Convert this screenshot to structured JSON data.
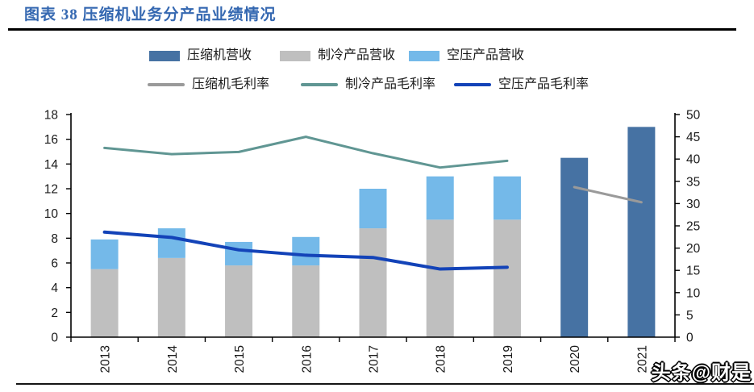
{
  "page": {
    "title": "图表 38 压缩机业务分产品业绩情况",
    "watermark": "头条@财是"
  },
  "colors": {
    "title": "#3568B1",
    "axis": "#000000",
    "tick_text": "#1A1A1A",
    "bar_compressor": "#4672A3",
    "bar_refrigeration": "#BFBFBF",
    "bar_air": "#74B9E9",
    "line_compressor": "#9A9A9A",
    "line_refrigeration": "#609693",
    "line_air": "#1343B8"
  },
  "legend": {
    "row1": [
      {
        "label": "压缩机营收",
        "type": "bar",
        "color_key": "bar_compressor"
      },
      {
        "label": "制冷产品营收",
        "type": "bar",
        "color_key": "bar_refrigeration"
      },
      {
        "label": "空压产品营收",
        "type": "bar",
        "color_key": "bar_air"
      }
    ],
    "row2": [
      {
        "label": "压缩机毛利率",
        "type": "line",
        "color_key": "line_compressor"
      },
      {
        "label": "制冷产品毛利率",
        "type": "line",
        "color_key": "line_refrigeration"
      },
      {
        "label": "空压产品毛利率",
        "type": "line",
        "color_key": "line_air"
      }
    ]
  },
  "chart_data": {
    "type": "combo-bar-line",
    "title": "图表 38 压缩机业务分产品业绩情况",
    "categories": [
      "2013",
      "2014",
      "2015",
      "2016",
      "2017",
      "2018",
      "2019",
      "2020",
      "2021"
    ],
    "bar_series": [
      {
        "name": "制冷产品营收",
        "axis": "left",
        "stack": "revenue",
        "color_key": "bar_refrigeration",
        "values": [
          5.5,
          6.4,
          5.8,
          5.8,
          8.8,
          9.5,
          9.5,
          null,
          null
        ]
      },
      {
        "name": "空压产品营收",
        "axis": "left",
        "stack": "revenue",
        "color_key": "bar_air",
        "values": [
          2.4,
          2.4,
          1.9,
          2.3,
          3.2,
          3.5,
          3.5,
          null,
          null
        ]
      },
      {
        "name": "压缩机营收",
        "axis": "left",
        "stack": "revenue",
        "color_key": "bar_compressor",
        "values": [
          null,
          null,
          null,
          null,
          null,
          null,
          null,
          14.5,
          17.0
        ]
      }
    ],
    "line_series": [
      {
        "name": "制冷产品毛利率",
        "axis": "right",
        "color_key": "line_refrigeration",
        "width": 3,
        "values": [
          42.5,
          41.1,
          41.6,
          45.0,
          41.3,
          38.1,
          39.6,
          null,
          null
        ]
      },
      {
        "name": "空压产品毛利率",
        "axis": "right",
        "color_key": "line_air",
        "width": 4,
        "values": [
          23.6,
          22.4,
          19.6,
          18.4,
          17.9,
          15.3,
          15.7,
          null,
          null
        ]
      },
      {
        "name": "压缩机毛利率",
        "axis": "right",
        "color_key": "line_compressor",
        "width": 3,
        "values": [
          null,
          null,
          null,
          null,
          null,
          null,
          null,
          33.7,
          30.3
        ]
      }
    ],
    "left_axis": {
      "min": 0,
      "max": 18,
      "step": 2,
      "ticks": [
        "0",
        "2",
        "4",
        "6",
        "8",
        "10",
        "12",
        "14",
        "16",
        "18"
      ]
    },
    "right_axis": {
      "min": 0,
      "max": 50,
      "step": 5,
      "ticks": [
        "0",
        "5",
        "10",
        "15",
        "20",
        "25",
        "30",
        "35",
        "40",
        "45",
        "50"
      ]
    },
    "grid": false,
    "legend_position": "top"
  }
}
